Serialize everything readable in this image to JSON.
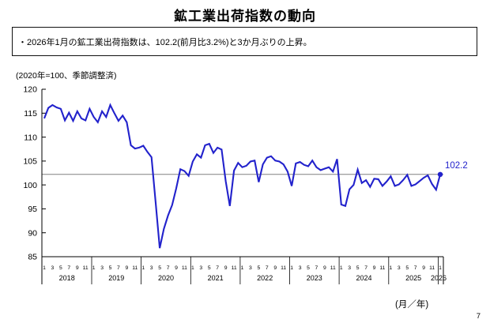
{
  "page": {
    "title": "鉱工業出荷指数の動向",
    "callout_text": "・2026年1月の鉱工業出荷指数は、102.2(前月比3.2%)と3か月ぶりの上昇。",
    "axis_note": "(2020年=100、季節調整済)",
    "x_unit_label": "(月／年)",
    "page_number": "7"
  },
  "chart_data": {
    "type": "line",
    "title": "鉱工業出荷指数の動向",
    "ylabel": "(2020年=100、季節調整済)",
    "xlabel": "(月／年)",
    "ylim": [
      85,
      120
    ],
    "y_ticks": [
      120,
      115,
      110,
      105,
      100,
      95,
      90,
      85
    ],
    "grid": false,
    "reference_line": 102.2,
    "last_value_label": "102.2",
    "line_color": "#2222cc",
    "ref_line_color": "#808080",
    "axis_color": "#000000",
    "years": [
      "2018",
      "2019",
      "2020",
      "2021",
      "2022",
      "2023",
      "2024",
      "2025",
      "2026"
    ],
    "month_tick_labels": [
      "1",
      "3",
      "5",
      "7",
      "9",
      "11"
    ],
    "x_start": "2018-01",
    "x_end": "2026-01",
    "frequency": "monthly",
    "series": [
      {
        "name": "鉱工業出荷指数(季節調整済)",
        "values": [
          113.9,
          116.1,
          116.7,
          116.2,
          115.9,
          113.5,
          115.1,
          113.4,
          115.4,
          113.9,
          113.5,
          115.9,
          114.2,
          113.1,
          115.4,
          114.2,
          116.7,
          115.0,
          113.4,
          114.5,
          113.1,
          108.3,
          107.6,
          107.8,
          108.2,
          106.9,
          105.8,
          96.4,
          86.8,
          90.8,
          93.6,
          95.8,
          99.3,
          103.3,
          102.9,
          101.9,
          104.9,
          106.4,
          105.7,
          108.3,
          108.6,
          106.7,
          107.8,
          107.4,
          100.8,
          95.6,
          103.0,
          104.6,
          103.7,
          104.0,
          104.9,
          105.1,
          100.6,
          104.3,
          105.7,
          106.0,
          105.1,
          104.9,
          104.3,
          102.8,
          99.8,
          104.5,
          104.8,
          104.2,
          103.9,
          105.1,
          103.7,
          103.1,
          103.4,
          103.7,
          102.8,
          105.4,
          95.9,
          95.6,
          99.1,
          100.0,
          103.2,
          100.4,
          101.0,
          99.6,
          101.3,
          101.2,
          99.8,
          100.7,
          101.8,
          99.8,
          100.1,
          101.0,
          102.1,
          99.8,
          100.1,
          100.8,
          101.5,
          102.0,
          100.2,
          99.0,
          102.2
        ]
      }
    ]
  }
}
